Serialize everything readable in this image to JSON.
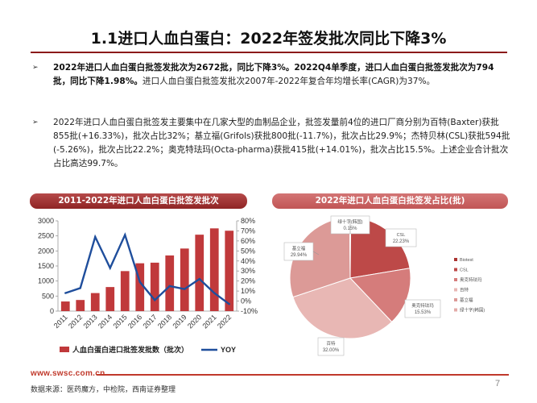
{
  "page": {
    "title": "1.1进口人血白蛋白：2022年签发批次同比下降3%",
    "bullet_mark": "➢",
    "bullet1": {
      "bold": "2022年进口人血白蛋白批签发批次为2672批，同比下降3%。2022Q4单季度，进口人血白蛋白批签发批次为794批，同比下降1.98%。",
      "rest": "进口人血白蛋白批签发批次2007年-2022年复合年均增长率(CAGR)为37%。"
    },
    "bullet2": {
      "text": "2022年进口人血白蛋白批签发主要集中在几家大型的血制品企业，批签发量前4位的进口厂商分别为百特(Baxter)获批855批(+16.33%)，批次占比32%；基立福(Grifols)获批800批(-11.7%)，批次占比29.9%；杰特贝林(CSL)获批594批(-5.26%)，批次占比22.2%；奥克特珐玛(Octa-pharma)获批415批(+14.01%)，批次占比15.5%。上述企业合计批次占比高达99.7%。"
    },
    "footer_url": "www.swsc.com.cn",
    "footer_source": "数据来源：医药魔方，中检院，西南证券整理",
    "page_number": "7"
  },
  "chart_data": [
    {
      "type": "bar",
      "title": "2011-2022年进口人血白蛋白批签发批次",
      "categories": [
        "2011",
        "2012",
        "2013",
        "2014",
        "2015",
        "2016",
        "2017",
        "2018",
        "2019",
        "2020",
        "2021",
        "2022"
      ],
      "series": [
        {
          "name": "人血白蛋白进口批签发批数（批次）",
          "kind": "bar",
          "axis": "left",
          "color": "#c0393b",
          "values": [
            320,
            370,
            600,
            800,
            1330,
            1590,
            1610,
            1850,
            2080,
            2540,
            2750,
            2672
          ]
        },
        {
          "name": "YOY",
          "kind": "line",
          "axis": "right",
          "color": "#1f4e9c",
          "values": [
            8,
            13,
            64,
            33,
            66,
            19,
            1,
            15,
            12,
            22,
            8,
            -3
          ]
        }
      ],
      "y_left": {
        "min": 0,
        "max": 3000,
        "ticks": [
          "0",
          "500",
          "1000",
          "1500",
          "2000",
          "2500",
          "3000"
        ]
      },
      "y_right": {
        "min": -10,
        "max": 80,
        "ticks": [
          "-10%",
          "0%",
          "10%",
          "20%",
          "30%",
          "40%",
          "50%",
          "60%",
          "70%",
          "80%"
        ]
      },
      "legend_position": "bottom"
    },
    {
      "type": "pie",
      "title": "2022年进口人血白蛋白批签发占比(批)",
      "slices": [
        {
          "label": "Biotest",
          "value": 0.15,
          "color": "#ab3330"
        },
        {
          "label": "CSL",
          "value": 22.23,
          "color": "#bd4948"
        },
        {
          "label": "奥克特珐玛",
          "value": 15.53,
          "color": "#d57c7b"
        },
        {
          "label": "百特",
          "value": 32.0,
          "color": "#e8b7b4"
        },
        {
          "label": "基立福",
          "value": 29.94,
          "color": "#dc9a97"
        },
        {
          "label": "绿十字(韩国)",
          "value": 0.15,
          "color": "#e3aba8"
        }
      ],
      "callouts": [
        {
          "label": "绿十字(韩国)",
          "pct": "0.15%"
        },
        {
          "label": "CSL",
          "pct": "22.23%"
        },
        {
          "label": "奥克特珐玛",
          "pct": "15.53%"
        },
        {
          "label": "百特",
          "pct": "32.00%"
        },
        {
          "label": "基立福",
          "pct": "29.94%"
        }
      ],
      "legend_position": "right"
    }
  ]
}
